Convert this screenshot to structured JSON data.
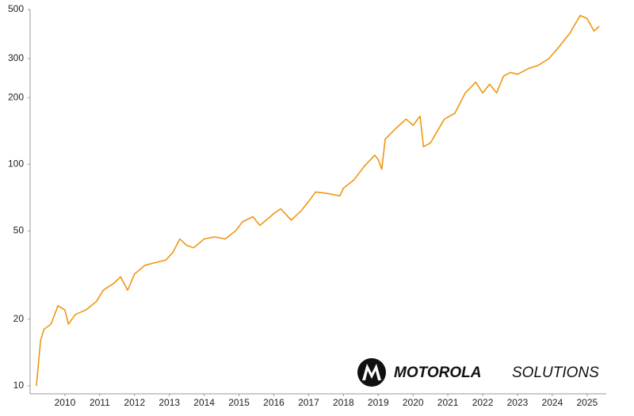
{
  "chart_data": {
    "type": "line",
    "x": [
      2009.18,
      2009.3,
      2009.4,
      2009.6,
      2009.8,
      2010.0,
      2010.1,
      2010.3,
      2010.6,
      2010.9,
      2011.1,
      2011.4,
      2011.6,
      2011.8,
      2012.0,
      2012.3,
      2012.6,
      2012.9,
      2013.1,
      2013.3,
      2013.5,
      2013.7,
      2014.0,
      2014.3,
      2014.6,
      2014.9,
      2015.1,
      2015.4,
      2015.6,
      2015.9,
      2016.0,
      2016.2,
      2016.5,
      2016.8,
      2017.0,
      2017.2,
      2017.5,
      2017.9,
      2018.0,
      2018.3,
      2018.6,
      2018.9,
      2019.0,
      2019.1,
      2019.2,
      2019.5,
      2019.8,
      2020.0,
      2020.2,
      2020.3,
      2020.5,
      2020.9,
      2021.2,
      2021.5,
      2021.8,
      2022.0,
      2022.2,
      2022.4,
      2022.6,
      2022.8,
      2023.0,
      2023.3,
      2023.6,
      2023.9,
      2024.2,
      2024.5,
      2024.8,
      2025.0,
      2025.2,
      2025.35
    ],
    "series": [
      {
        "color": "#f0960f",
        "values": [
          10,
          16,
          18,
          19,
          23,
          22,
          19,
          21,
          22,
          24,
          27,
          29,
          31,
          27,
          32,
          35,
          36,
          37,
          40,
          46,
          43,
          42,
          46,
          47,
          46,
          50,
          55,
          58,
          53,
          58,
          60,
          63,
          56,
          62,
          68,
          75,
          74,
          72,
          78,
          85,
          98,
          110,
          105,
          95,
          130,
          145,
          160,
          150,
          165,
          120,
          125,
          160,
          170,
          210,
          235,
          210,
          230,
          210,
          250,
          260,
          255,
          270,
          280,
          300,
          340,
          390,
          470,
          455,
          400,
          420
        ]
      }
    ],
    "xlim": [
      2009,
      2025.55
    ],
    "xticks": [
      2010,
      2011,
      2012,
      2013,
      2014,
      2015,
      2016,
      2017,
      2018,
      2019,
      2020,
      2021,
      2022,
      2023,
      2024,
      2025
    ],
    "ylim": [
      9.2,
      500
    ],
    "yticks": [
      10,
      20,
      50,
      100,
      200,
      300,
      500
    ],
    "log_y": true,
    "grid": false,
    "brand": [
      "MOTOROLA",
      "SOLUTIONS"
    ]
  }
}
